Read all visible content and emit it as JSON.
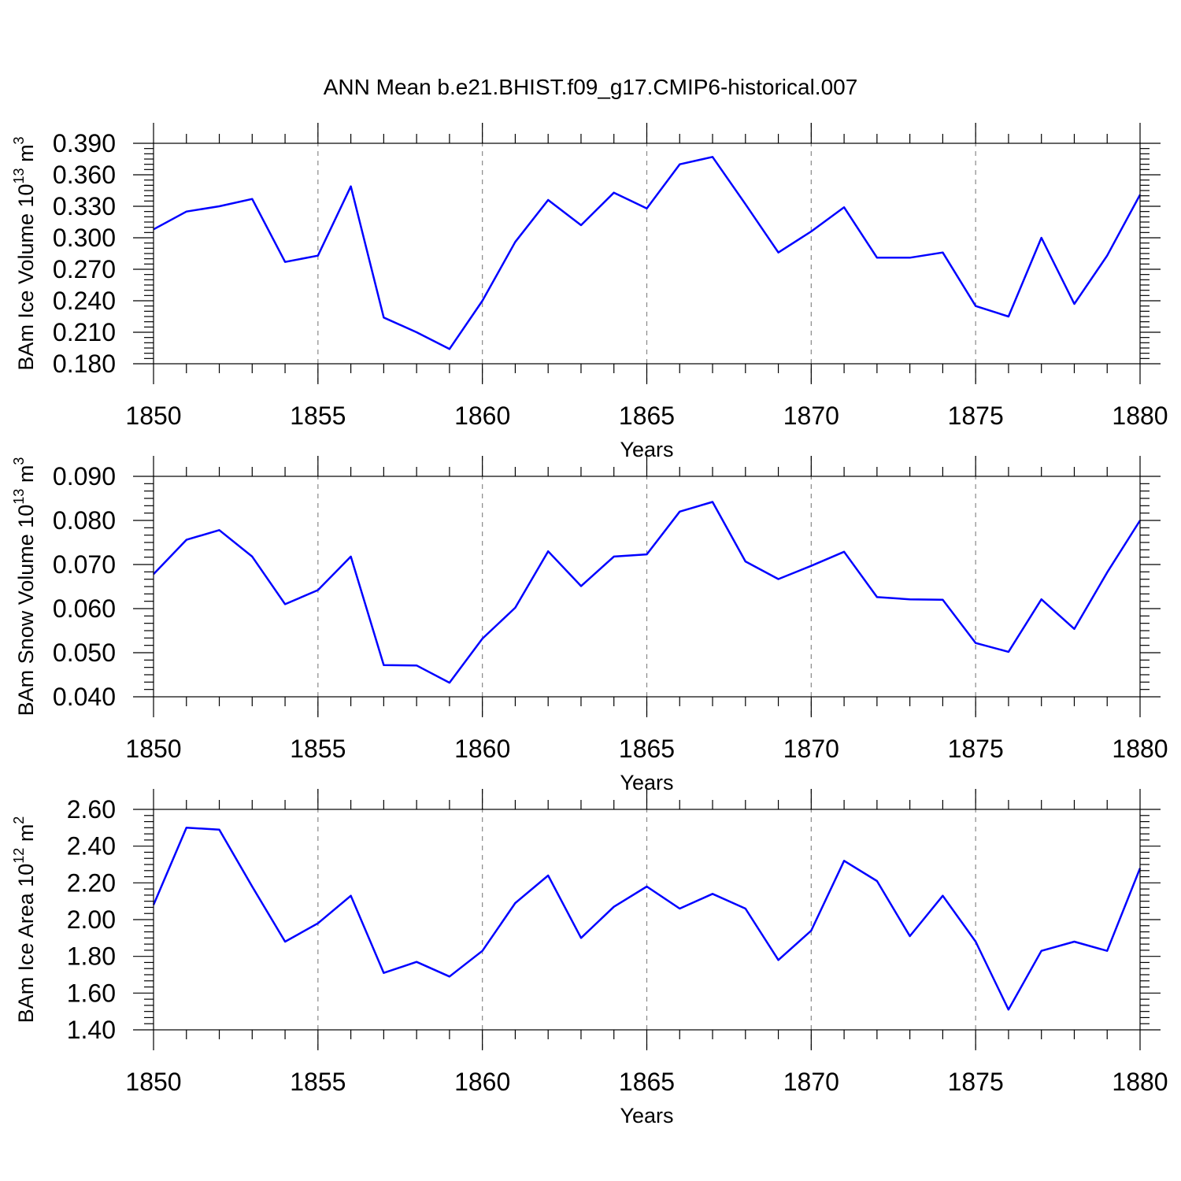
{
  "title": "ANN Mean b.e21.BHIST.f09_g17.CMIP6-historical.007",
  "chart_data": [
    {
      "type": "line",
      "title": "",
      "ylabel": "BAm Ice Volume 10",
      "ylabel_exp": "13",
      "ylabel_unit": " m",
      "ylabel_unit_exp": "3",
      "xlabel": "Years",
      "xlim": [
        1850,
        1880
      ],
      "ylim": [
        0.18,
        0.39
      ],
      "yticks": [
        0.18,
        0.21,
        0.24,
        0.27,
        0.3,
        0.33,
        0.36,
        0.39
      ],
      "ytick_labels": [
        "0.180",
        "0.210",
        "0.240",
        "0.270",
        "0.300",
        "0.330",
        "0.360",
        "0.390"
      ],
      "xticks": [
        1850,
        1855,
        1860,
        1865,
        1870,
        1875,
        1880
      ],
      "xtick_labels": [
        "1850",
        "1855",
        "1860",
        "1865",
        "1870",
        "1875",
        "1880"
      ],
      "grid_x": [
        1855,
        1860,
        1865,
        1870,
        1875
      ],
      "series": [
        {
          "name": "BAm Ice Volume",
          "color": "#0000ff",
          "x": [
            1850,
            1851,
            1852,
            1853,
            1854,
            1855,
            1856,
            1857,
            1858,
            1859,
            1860,
            1861,
            1862,
            1863,
            1864,
            1865,
            1866,
            1867,
            1868,
            1869,
            1870,
            1871,
            1872,
            1873,
            1874,
            1875,
            1876,
            1877,
            1878,
            1879,
            1880
          ],
          "values": [
            0.308,
            0.325,
            0.33,
            0.337,
            0.277,
            0.283,
            0.349,
            0.224,
            0.21,
            0.194,
            0.24,
            0.296,
            0.336,
            0.312,
            0.343,
            0.328,
            0.37,
            0.377,
            0.332,
            0.286,
            0.306,
            0.329,
            0.281,
            0.281,
            0.286,
            0.235,
            0.225,
            0.3,
            0.237,
            0.283,
            0.341
          ]
        }
      ]
    },
    {
      "type": "line",
      "title": "",
      "ylabel": "BAm Snow Volume 10",
      "ylabel_exp": "13",
      "ylabel_unit": " m",
      "ylabel_unit_exp": "3",
      "xlabel": "Years",
      "xlim": [
        1850,
        1880
      ],
      "ylim": [
        0.04,
        0.09
      ],
      "yticks": [
        0.04,
        0.05,
        0.06,
        0.07,
        0.08,
        0.09
      ],
      "ytick_labels": [
        "0.040",
        "0.050",
        "0.060",
        "0.070",
        "0.080",
        "0.090"
      ],
      "xticks": [
        1850,
        1855,
        1860,
        1865,
        1870,
        1875,
        1880
      ],
      "xtick_labels": [
        "1850",
        "1855",
        "1860",
        "1865",
        "1870",
        "1875",
        "1880"
      ],
      "grid_x": [
        1855,
        1860,
        1865,
        1870,
        1875
      ],
      "series": [
        {
          "name": "BAm Snow Volume",
          "color": "#0000ff",
          "x": [
            1850,
            1851,
            1852,
            1853,
            1854,
            1855,
            1856,
            1857,
            1858,
            1859,
            1860,
            1861,
            1862,
            1863,
            1864,
            1865,
            1866,
            1867,
            1868,
            1869,
            1870,
            1871,
            1872,
            1873,
            1874,
            1875,
            1876,
            1877,
            1878,
            1879,
            1880
          ],
          "values": [
            0.0678,
            0.0756,
            0.0778,
            0.0718,
            0.061,
            0.0642,
            0.0718,
            0.0472,
            0.0471,
            0.0432,
            0.0532,
            0.0602,
            0.073,
            0.0651,
            0.0718,
            0.0723,
            0.082,
            0.0842,
            0.0707,
            0.0667,
            0.0697,
            0.0729,
            0.0626,
            0.0621,
            0.062,
            0.0522,
            0.0502,
            0.0621,
            0.0554,
            0.0682,
            0.08
          ]
        }
      ]
    },
    {
      "type": "line",
      "title": "",
      "ylabel": "BAm Ice Area 10",
      "ylabel_exp": "12",
      "ylabel_unit": " m",
      "ylabel_unit_exp": "2",
      "xlabel": "Years",
      "xlim": [
        1850,
        1880
      ],
      "ylim": [
        1.4,
        2.6
      ],
      "yticks": [
        1.4,
        1.6,
        1.8,
        2.0,
        2.2,
        2.4,
        2.6
      ],
      "ytick_labels": [
        "1.40",
        "1.60",
        "1.80",
        "2.00",
        "2.20",
        "2.40",
        "2.60"
      ],
      "xticks": [
        1850,
        1855,
        1860,
        1865,
        1870,
        1875,
        1880
      ],
      "xtick_labels": [
        "1850",
        "1855",
        "1860",
        "1865",
        "1870",
        "1875",
        "1880"
      ],
      "grid_x": [
        1855,
        1860,
        1865,
        1870,
        1875
      ],
      "series": [
        {
          "name": "BAm Ice Area",
          "color": "#0000ff",
          "x": [
            1850,
            1851,
            1852,
            1853,
            1854,
            1855,
            1856,
            1857,
            1858,
            1859,
            1860,
            1861,
            1862,
            1863,
            1864,
            1865,
            1866,
            1867,
            1868,
            1869,
            1870,
            1871,
            1872,
            1873,
            1874,
            1875,
            1876,
            1877,
            1878,
            1879,
            1880
          ],
          "values": [
            2.08,
            2.5,
            2.49,
            2.18,
            1.88,
            1.98,
            2.13,
            1.71,
            1.77,
            1.69,
            1.83,
            2.09,
            2.24,
            1.9,
            2.07,
            2.18,
            2.06,
            2.14,
            2.06,
            1.78,
            1.94,
            2.32,
            2.21,
            1.91,
            2.13,
            1.88,
            1.51,
            1.83,
            1.88,
            1.83,
            2.28
          ]
        }
      ]
    }
  ]
}
